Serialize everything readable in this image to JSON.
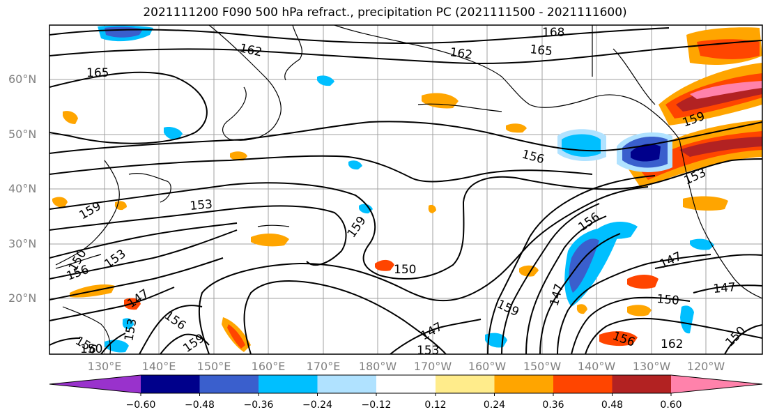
{
  "title": "2021111200 F090 500 hPa refract., precipitation PC (2021111500 - 2021111600)",
  "lat_labels": [
    "60°N",
    "50°N",
    "40°N",
    "30°N",
    "20°N"
  ],
  "lon_labels": [
    "130°E",
    "140°E",
    "150°E",
    "160°E",
    "170°E",
    "180°W",
    "170°W",
    "160°W",
    "150°W",
    "140°W",
    "130°W",
    "120°W"
  ],
  "colorbar": {
    "ticks": [
      "−0.60",
      "−0.48",
      "−0.36",
      "−0.24",
      "−0.12",
      "0.12",
      "0.24",
      "0.36",
      "0.48",
      "0.60"
    ],
    "colors": [
      "#9932cc",
      "#00008b",
      "#3a5fcd",
      "#00bfff",
      "#b0e2ff",
      "#ffffff",
      "#ffec8b",
      "#ffa500",
      "#ff4500",
      "#b22222",
      "#ff82ab"
    ]
  },
  "contour_labels": [
    {
      "text": "168"
    },
    {
      "text": "162"
    },
    {
      "text": "162"
    },
    {
      "text": "165"
    },
    {
      "text": "165"
    },
    {
      "text": "159"
    },
    {
      "text": "156"
    },
    {
      "text": "153"
    },
    {
      "text": "153"
    },
    {
      "text": "159"
    },
    {
      "text": "159"
    },
    {
      "text": "150"
    },
    {
      "text": "156"
    },
    {
      "text": "153"
    },
    {
      "text": "150"
    },
    {
      "text": "156"
    },
    {
      "text": "147"
    },
    {
      "text": "147"
    },
    {
      "text": "147"
    },
    {
      "text": "150"
    },
    {
      "text": "162"
    },
    {
      "text": "150"
    },
    {
      "text": "147"
    },
    {
      "text": "159"
    },
    {
      "text": "147"
    },
    {
      "text": "156"
    },
    {
      "text": "153"
    },
    {
      "text": "156"
    },
    {
      "text": "159"
    },
    {
      "text": "156"
    },
    {
      "text": "153"
    },
    {
      "text": "150"
    }
  ]
}
